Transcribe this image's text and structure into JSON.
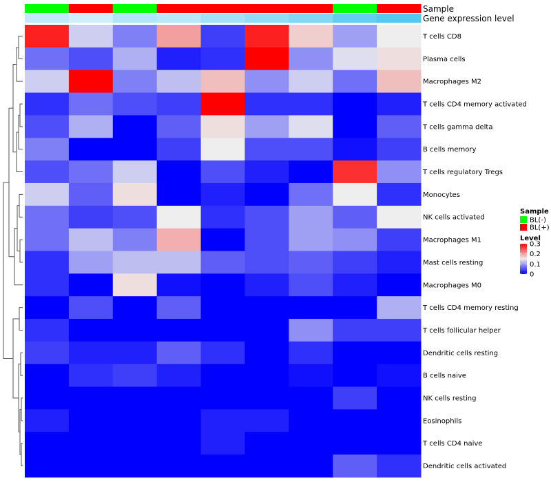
{
  "chart_data": {
    "type": "heatmap",
    "annotation_labels": {
      "sample": "Sample",
      "gene_expression": "Gene expression level"
    },
    "columns": [
      {
        "sample": "BL(-)",
        "gene_expression": 0.3
      },
      {
        "sample": "BL(+)",
        "gene_expression": 0.2
      },
      {
        "sample": "BL(-)",
        "gene_expression": 0.4
      },
      {
        "sample": "BL(+)",
        "gene_expression": 0.35
      },
      {
        "sample": "BL(+)",
        "gene_expression": 0.5
      },
      {
        "sample": "BL(+)",
        "gene_expression": 0.6
      },
      {
        "sample": "BL(+)",
        "gene_expression": 0.7
      },
      {
        "sample": "BL(-)",
        "gene_expression": 0.9
      },
      {
        "sample": "BL(+)",
        "gene_expression": 1.0
      }
    ],
    "rows": [
      "T cells CD8",
      "Plasma cells",
      "Macrophages M2",
      "T cells CD4 memory activated",
      "T cells gamma delta",
      "B cells memory",
      "T cells regulatory  Tregs",
      "Monocytes",
      "NK cells activated",
      "Macrophages M1",
      "Mast cells resting",
      "Macrophages M0",
      "T cells CD4 memory resting",
      "T cells follicular helper",
      "Dendritic cells resting",
      "B cells naive",
      "NK cells resting",
      "Eosinophils",
      "T cells CD4 naive",
      "Dendritic cells activated"
    ],
    "values": [
      [
        0.28,
        0.13,
        0.08,
        0.2,
        0.04,
        0.28,
        0.17,
        0.1,
        0.15
      ],
      [
        0.07,
        0.05,
        0.11,
        0.02,
        0.03,
        0.3,
        0.09,
        0.14,
        0.16
      ],
      [
        0.13,
        0.3,
        0.08,
        0.12,
        0.18,
        0.09,
        0.13,
        0.07,
        0.18
      ],
      [
        0.03,
        0.07,
        0.05,
        0.04,
        0.3,
        0.03,
        0.03,
        0.0,
        0.02
      ],
      [
        0.05,
        0.11,
        0.0,
        0.06,
        0.16,
        0.1,
        0.14,
        0.0,
        0.06
      ],
      [
        0.08,
        0.0,
        0.0,
        0.04,
        0.15,
        0.05,
        0.05,
        0.01,
        0.04
      ],
      [
        0.05,
        0.07,
        0.13,
        0.0,
        0.05,
        0.02,
        0.0,
        0.27,
        0.09
      ],
      [
        0.13,
        0.06,
        0.16,
        0.0,
        0.02,
        0.0,
        0.07,
        0.15,
        0.03
      ],
      [
        0.07,
        0.04,
        0.05,
        0.15,
        0.03,
        0.05,
        0.1,
        0.06,
        0.15
      ],
      [
        0.07,
        0.12,
        0.08,
        0.19,
        0.0,
        0.05,
        0.1,
        0.09,
        0.04
      ],
      [
        0.03,
        0.1,
        0.12,
        0.12,
        0.06,
        0.05,
        0.06,
        0.04,
        0.02
      ],
      [
        0.03,
        0.0,
        0.16,
        0.01,
        0.0,
        0.02,
        0.05,
        0.02,
        0.0
      ],
      [
        0.0,
        0.05,
        0.0,
        0.06,
        0.0,
        0.0,
        0.0,
        0.0,
        0.11
      ],
      [
        0.03,
        0.0,
        0.0,
        0.0,
        0.0,
        0.0,
        0.09,
        0.04,
        0.04
      ],
      [
        0.04,
        0.02,
        0.02,
        0.06,
        0.03,
        0.0,
        0.03,
        0.0,
        0.0
      ],
      [
        0.0,
        0.03,
        0.04,
        0.02,
        0.0,
        0.0,
        0.01,
        0.0,
        0.01
      ],
      [
        0.0,
        0.0,
        0.0,
        0.0,
        0.0,
        0.0,
        0.0,
        0.04,
        0.0
      ],
      [
        0.02,
        0.0,
        0.0,
        0.0,
        0.02,
        0.02,
        0.0,
        0.0,
        0.0
      ],
      [
        0.0,
        0.0,
        0.0,
        0.0,
        0.02,
        0.0,
        0.0,
        0.0,
        0.0
      ],
      [
        0.0,
        0.0,
        0.0,
        0.0,
        0.0,
        0.0,
        0.0,
        0.06,
        0.03
      ]
    ],
    "color_scale": {
      "min": 0,
      "mid": 0.15,
      "max": 0.3,
      "low_color": "#0000ff",
      "mid_color": "#eeeeee",
      "high_color": "#ff0000"
    },
    "gene_expression_colors": {
      "low": "#eef9ff",
      "high": "#55c8f0"
    },
    "legend": {
      "sample_title": "Sample",
      "sample_items": [
        {
          "label": "BL(-)",
          "color": "#00ff00"
        },
        {
          "label": "BL(+)",
          "color": "#ff0000"
        }
      ],
      "level_title": "Level",
      "level_ticks": [
        "0.3",
        "0.2",
        "0.1",
        "0"
      ],
      "placement": "right"
    },
    "dendrogram": "left"
  }
}
